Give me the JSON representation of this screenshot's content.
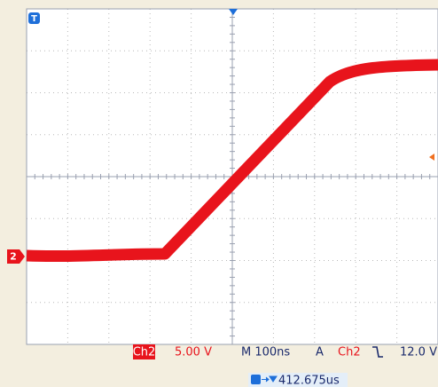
{
  "markers": {
    "trigger": "T",
    "channel": "2"
  },
  "status": {
    "channel": "Ch2",
    "scale": "5.00 V",
    "timebase": "M 100ns",
    "trigger_mode": "A",
    "trigger_channel": "Ch2",
    "trigger_level": "12.0 V",
    "trigger_position": "412.675us"
  }
}
